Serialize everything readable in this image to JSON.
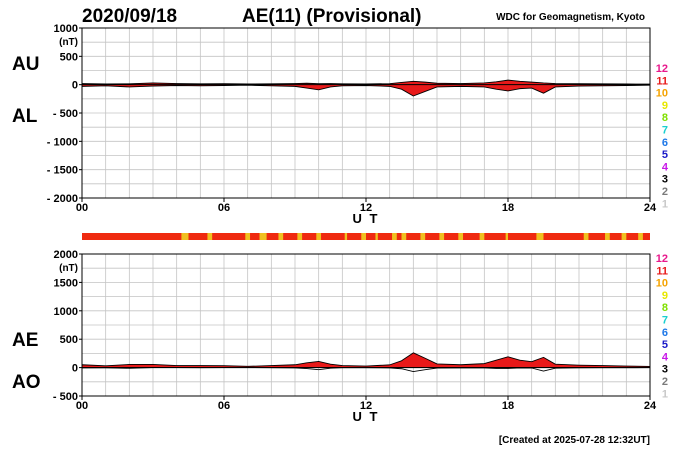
{
  "header": {
    "date": "2020/09/18",
    "title": "AE(11) (Provisional)",
    "source": "WDC for Geomagnetism, Kyoto"
  },
  "footer": {
    "created": "[Created at 2025-07-28 12:32UT]"
  },
  "station_legend": {
    "items": [
      "12",
      "11",
      "10",
      "9",
      "8",
      "7",
      "6",
      "5",
      "4",
      "3",
      "2",
      "1"
    ],
    "colors": [
      "#e8198c",
      "#e81919",
      "#f5a300",
      "#e8e800",
      "#80e000",
      "#19d0d0",
      "#1e78e8",
      "#1919c8",
      "#c819e8",
      "#000000",
      "#7a7a7a",
      "#c8c8c8"
    ]
  },
  "station_bar": {
    "base_color": "#ef2a10",
    "highlight_color": "#f0c020",
    "highlight_hours": [
      [
        4.2,
        4.5
      ],
      [
        5.3,
        5.5
      ],
      [
        6.9,
        7.1
      ],
      [
        7.5,
        7.8
      ],
      [
        8.3,
        8.5
      ],
      [
        9.1,
        9.3
      ],
      [
        9.9,
        10.1
      ],
      [
        11.1,
        11.2
      ],
      [
        11.8,
        12.0
      ],
      [
        12.4,
        12.5
      ],
      [
        13.1,
        13.3
      ],
      [
        13.5,
        13.7
      ],
      [
        14.3,
        14.5
      ],
      [
        15.1,
        15.3
      ],
      [
        15.9,
        16.1
      ],
      [
        16.8,
        17.0
      ],
      [
        17.9,
        18.0
      ],
      [
        19.2,
        19.5
      ],
      [
        21.2,
        21.4
      ],
      [
        22.1,
        22.3
      ],
      [
        22.8,
        23.0
      ],
      [
        23.5,
        23.7
      ]
    ]
  },
  "chart_data": [
    {
      "type": "area",
      "series": [
        {
          "name": "AU",
          "color": "#e81919",
          "x": [
            0,
            1,
            2,
            3,
            4,
            5,
            6,
            7,
            8,
            9,
            9.5,
            10,
            10.5,
            11,
            12,
            13,
            13.5,
            14,
            14.5,
            15,
            16,
            17,
            17.5,
            18,
            18.5,
            19,
            19.5,
            20,
            21,
            22,
            23,
            24
          ],
          "values": [
            20,
            12,
            15,
            30,
            20,
            15,
            18,
            12,
            15,
            20,
            25,
            18,
            20,
            15,
            12,
            18,
            40,
            60,
            45,
            25,
            20,
            30,
            50,
            80,
            60,
            45,
            30,
            20,
            18,
            15,
            12,
            10
          ]
        },
        {
          "name": "AL",
          "color": "#e81919",
          "x": [
            0,
            1,
            2,
            3,
            4,
            5,
            6,
            7,
            8,
            9,
            9.5,
            10,
            10.5,
            11,
            12,
            13,
            13.5,
            14,
            14.5,
            15,
            16,
            17,
            17.5,
            18,
            18.5,
            19,
            19.5,
            20,
            21,
            22,
            23,
            24
          ],
          "values": [
            -30,
            -20,
            -40,
            -25,
            -15,
            -20,
            -15,
            -10,
            -20,
            -30,
            -60,
            -90,
            -40,
            -20,
            -15,
            -30,
            -80,
            -200,
            -120,
            -40,
            -30,
            -40,
            -80,
            -110,
            -70,
            -60,
            -150,
            -40,
            -25,
            -20,
            -15,
            -10
          ]
        }
      ],
      "ylabel_top": "AU",
      "ylabel_bottom": "AL",
      "yunit": "(nT)",
      "xlabel": "U T",
      "ylim": [
        -2000,
        1000
      ],
      "yticks": [
        1000,
        500,
        0,
        -500,
        -1000,
        -1500,
        -2000
      ],
      "ytick_labels": [
        "1000",
        "500",
        "0",
        "- 500",
        "- 1000",
        "- 1500",
        "- 2000"
      ],
      "xlim": [
        0,
        24
      ],
      "xticks": [
        0,
        6,
        12,
        18,
        24
      ],
      "xtick_labels": [
        "00",
        "06",
        "12",
        "18",
        "24"
      ],
      "grid": true
    },
    {
      "type": "area",
      "series": [
        {
          "name": "AE",
          "color": "#e81919",
          "x": [
            0,
            1,
            2,
            3,
            4,
            5,
            6,
            7,
            8,
            9,
            9.5,
            10,
            10.5,
            11,
            12,
            13,
            13.5,
            14,
            14.5,
            15,
            16,
            17,
            17.5,
            18,
            18.5,
            19,
            19.5,
            20,
            21,
            22,
            23,
            24
          ],
          "values": [
            50,
            32,
            55,
            55,
            35,
            35,
            33,
            22,
            35,
            50,
            85,
            108,
            60,
            35,
            27,
            48,
            120,
            260,
            165,
            65,
            50,
            70,
            130,
            190,
            130,
            105,
            180,
            60,
            43,
            35,
            27,
            20
          ]
        },
        {
          "name": "AO",
          "color": "#000000",
          "x": [
            0,
            1,
            2,
            3,
            4,
            5,
            6,
            7,
            8,
            9,
            9.5,
            10,
            10.5,
            11,
            12,
            13,
            13.5,
            14,
            14.5,
            15,
            16,
            17,
            17.5,
            18,
            18.5,
            19,
            19.5,
            20,
            21,
            22,
            23,
            24
          ],
          "values": [
            -5,
            -4,
            -12,
            2,
            2,
            -2,
            1,
            1,
            -2,
            -5,
            -17,
            -36,
            -10,
            -2,
            -1,
            -6,
            -20,
            -70,
            -37,
            -7,
            -5,
            -5,
            -15,
            -15,
            -5,
            -7,
            -60,
            -10,
            -3,
            -2,
            -1,
            0
          ]
        }
      ],
      "ylabel_top": "AE",
      "ylabel_bottom": "AO",
      "yunit": "(nT)",
      "xlabel": "U T",
      "ylim": [
        -500,
        2000
      ],
      "yticks": [
        2000,
        1500,
        1000,
        500,
        0,
        -500
      ],
      "ytick_labels": [
        "2000",
        "1500",
        "1000",
        "500",
        "0",
        "- 500"
      ],
      "xlim": [
        0,
        24
      ],
      "xticks": [
        0,
        6,
        12,
        18,
        24
      ],
      "xtick_labels": [
        "00",
        "06",
        "12",
        "18",
        "24"
      ],
      "grid": true
    }
  ]
}
